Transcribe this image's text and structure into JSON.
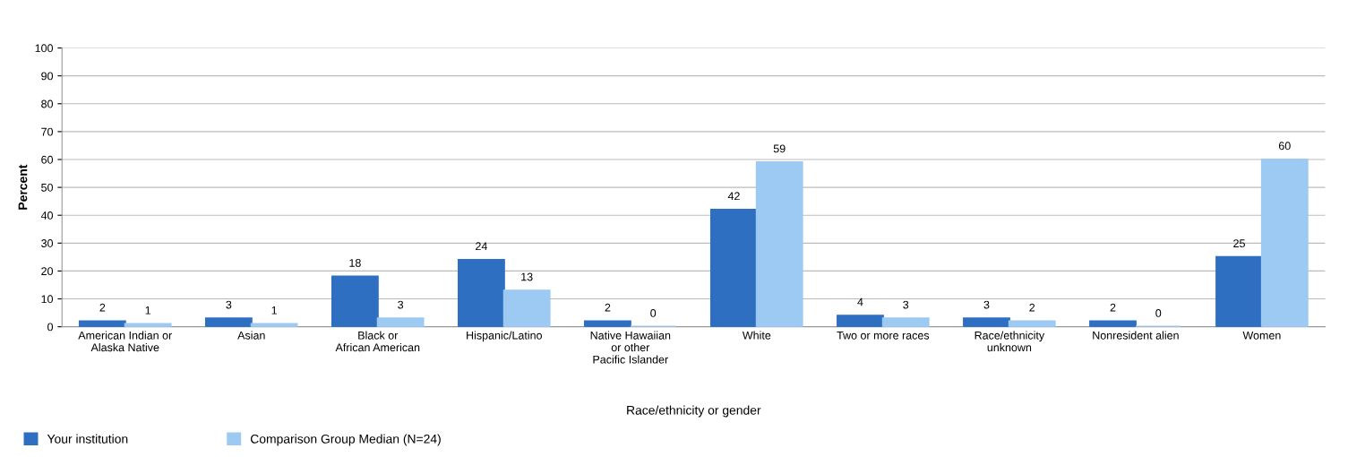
{
  "chart_data": {
    "type": "bar",
    "xlabel": "Race/ethnicity or gender",
    "ylabel": "Percent",
    "categories": [
      "American Indian or\nAlaska Native",
      "Asian",
      "Black or\nAfrican American",
      "Hispanic/Latino",
      "Native Hawaiian\nor other\nPacific Islander",
      "White",
      "Two or more races",
      "Race/ethnicity\nunknown",
      "Nonresident alien",
      "Women"
    ],
    "series": [
      {
        "name": "Your institution",
        "color": "#2e6fc2",
        "values": [
          2,
          3,
          18,
          24,
          2,
          42,
          4,
          3,
          2,
          25
        ]
      },
      {
        "name": "Comparison Group Median (N=24)",
        "color": "#9ccaf2",
        "values": [
          1,
          1,
          3,
          13,
          0,
          59,
          3,
          2,
          0,
          60
        ]
      }
    ],
    "ylim": [
      0,
      100
    ],
    "yticks": [
      0,
      10,
      20,
      30,
      40,
      50,
      60,
      70,
      80,
      90,
      100
    ],
    "grid": "y",
    "legend": "bottom left",
    "data_labels": true
  }
}
